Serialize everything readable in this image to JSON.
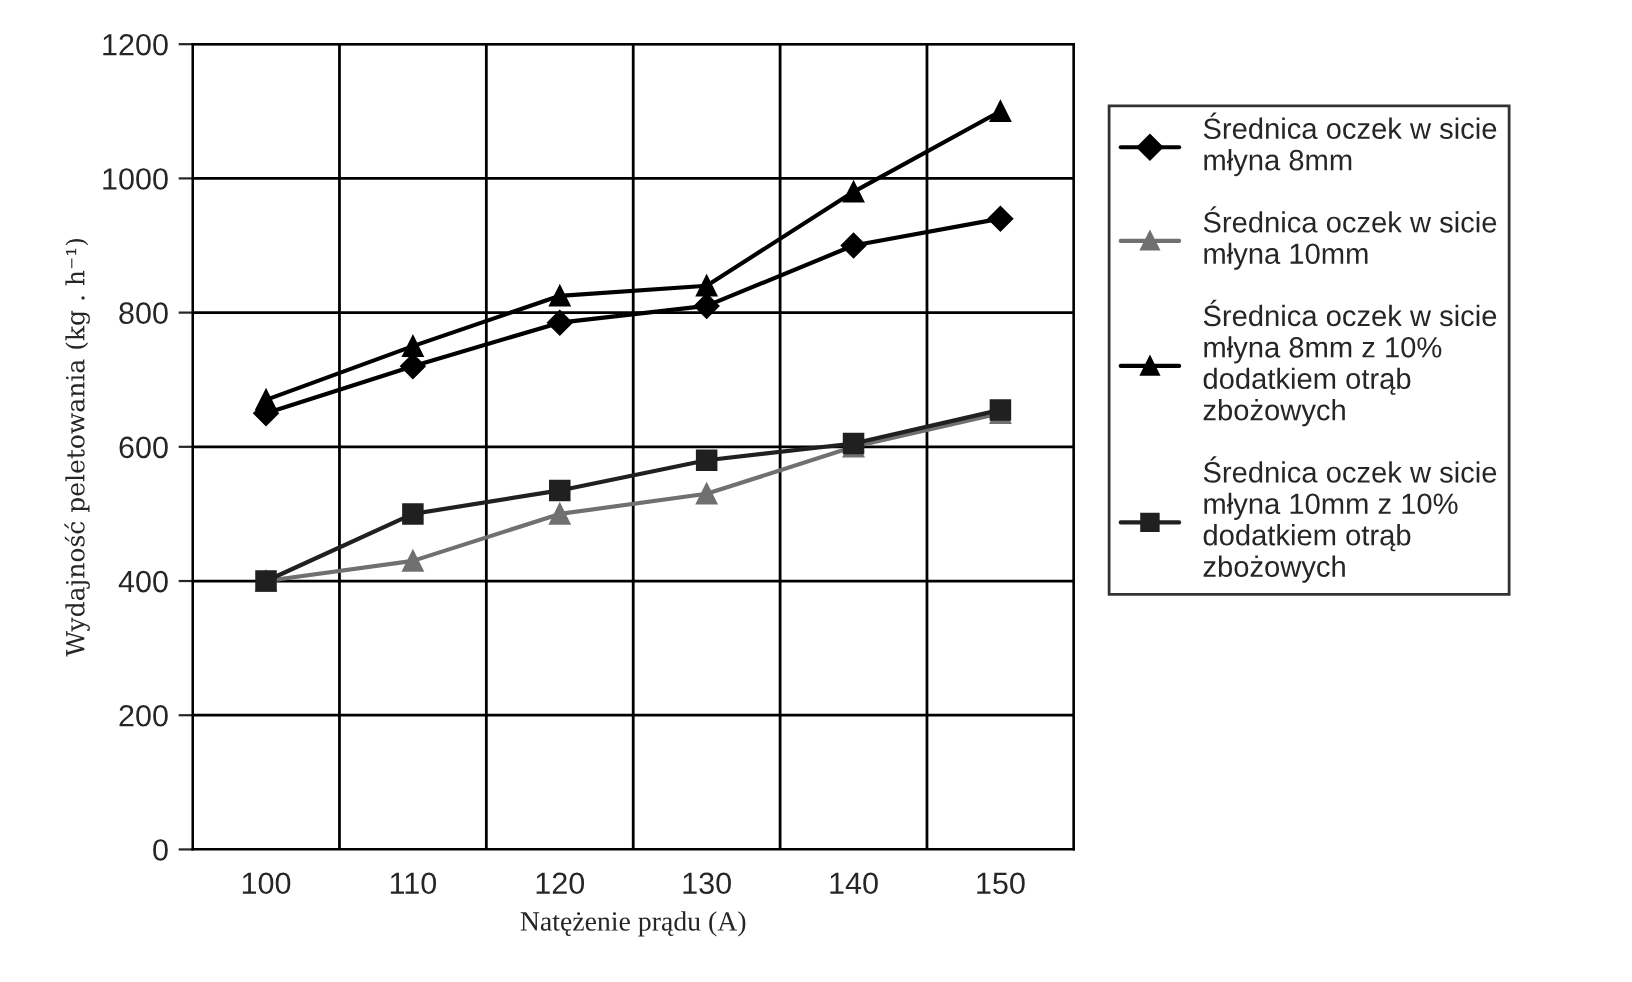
{
  "chart_data": {
    "type": "line",
    "xlabel": "Natężenie prądu (A)",
    "ylabel": "Wydajność peletowania (kg . h⁻¹)",
    "categories": [
      "100",
      "110",
      "120",
      "130",
      "140",
      "150"
    ],
    "series": [
      {
        "name": "Średnica oczek w sicie młyna 8mm",
        "color": "#000000",
        "marker": "diamond",
        "values": [
          650,
          720,
          785,
          810,
          900,
          940
        ]
      },
      {
        "name": "Średnica oczek w sicie młyna 10mm",
        "color": "#707070",
        "marker": "triangle",
        "values": [
          400,
          430,
          500,
          530,
          600,
          650
        ]
      },
      {
        "name": "Średnica oczek w sicie młyna 8mm z 10% dodatkiem otrąb zbożowych",
        "color": "#000000",
        "marker": "triangle",
        "values": [
          670,
          750,
          825,
          840,
          980,
          1100
        ]
      },
      {
        "name": "Średnica oczek w sicie młyna 10mm z 10% dodatkiem otrąb zbożowych",
        "color": "#202020",
        "marker": "square",
        "values": [
          400,
          500,
          535,
          580,
          605,
          655
        ]
      }
    ],
    "ylim": [
      0,
      1200
    ],
    "yticks": [
      0,
      200,
      400,
      600,
      800,
      1000,
      1200
    ],
    "grid": true,
    "legend": "right",
    "line_style": "solid"
  }
}
